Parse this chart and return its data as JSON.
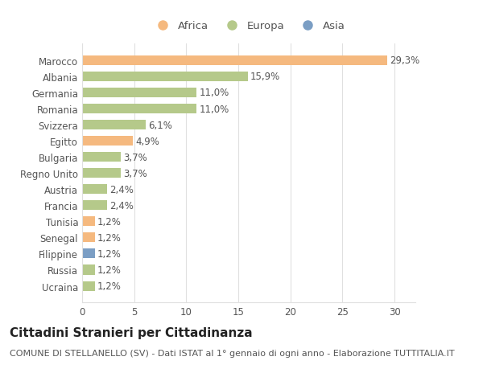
{
  "countries": [
    "Marocco",
    "Albania",
    "Germania",
    "Romania",
    "Svizzera",
    "Egitto",
    "Bulgaria",
    "Regno Unito",
    "Austria",
    "Francia",
    "Tunisia",
    "Senegal",
    "Filippine",
    "Russia",
    "Ucraina"
  ],
  "values": [
    29.3,
    15.9,
    11.0,
    11.0,
    6.1,
    4.9,
    3.7,
    3.7,
    2.4,
    2.4,
    1.2,
    1.2,
    1.2,
    1.2,
    1.2
  ],
  "labels": [
    "29,3%",
    "15,9%",
    "11,0%",
    "11,0%",
    "6,1%",
    "4,9%",
    "3,7%",
    "3,7%",
    "2,4%",
    "2,4%",
    "1,2%",
    "1,2%",
    "1,2%",
    "1,2%",
    "1,2%"
  ],
  "continents": [
    "Africa",
    "Europa",
    "Europa",
    "Europa",
    "Europa",
    "Africa",
    "Europa",
    "Europa",
    "Europa",
    "Europa",
    "Africa",
    "Africa",
    "Asia",
    "Europa",
    "Europa"
  ],
  "colors": {
    "Africa": "#F5B97F",
    "Europa": "#B5C98A",
    "Asia": "#7B9EC4"
  },
  "legend_order": [
    "Africa",
    "Europa",
    "Asia"
  ],
  "xlim": [
    0,
    32
  ],
  "xticks": [
    0,
    5,
    10,
    15,
    20,
    25,
    30
  ],
  "title": "Cittadini Stranieri per Cittadinanza",
  "subtitle": "COMUNE DI STELLANELLO (SV) - Dati ISTAT al 1° gennaio di ogni anno - Elaborazione TUTTITALIA.IT",
  "background_color": "#ffffff",
  "grid_color": "#e0e0e0",
  "bar_height": 0.6,
  "label_fontsize": 8.5,
  "tick_fontsize": 8.5,
  "title_fontsize": 11,
  "subtitle_fontsize": 8,
  "legend_fontsize": 9.5
}
